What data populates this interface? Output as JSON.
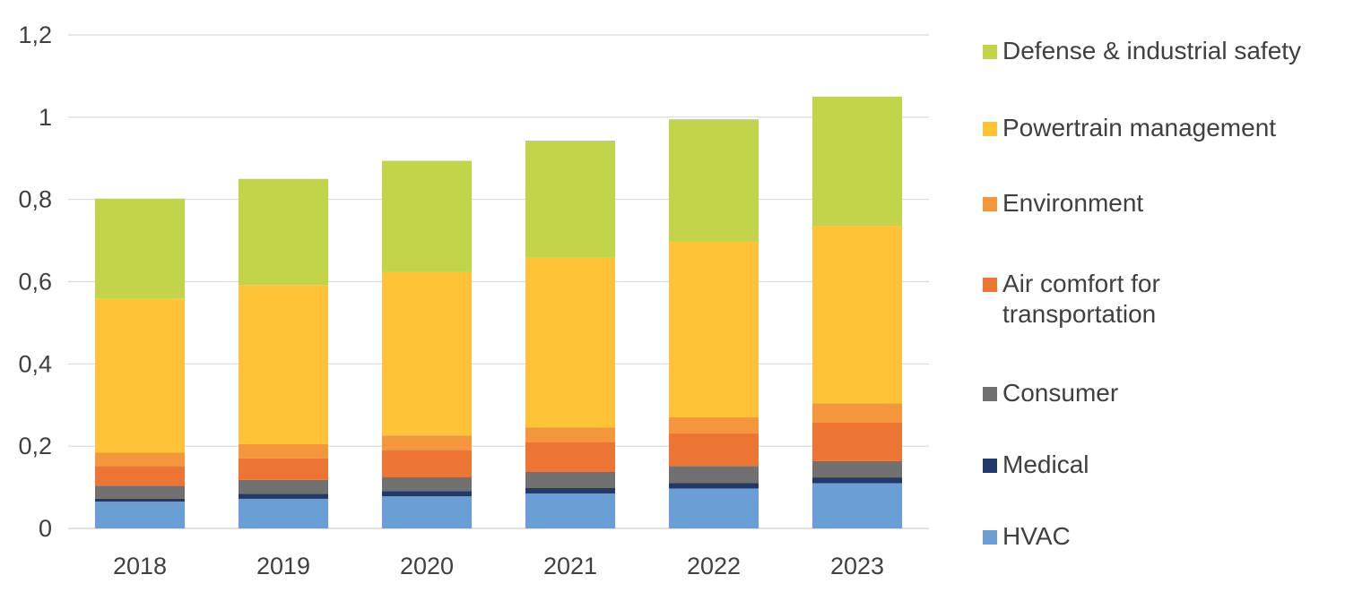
{
  "chart_data": {
    "type": "bar",
    "stacked": true,
    "categories": [
      "2018",
      "2019",
      "2020",
      "2021",
      "2022",
      "2023"
    ],
    "ylim": [
      0,
      1.2
    ],
    "yticks": [
      "0",
      "0,2",
      "0,4",
      "0,6",
      "0,8",
      "1",
      "1,2"
    ],
    "grid": true,
    "legend_position": "right",
    "series": [
      {
        "name": "HVAC",
        "color": "#6A9FD6",
        "values": [
          0.065,
          0.072,
          0.078,
          0.085,
          0.097,
          0.11
        ]
      },
      {
        "name": "Medical",
        "color": "#1F3A6B",
        "values": [
          0.007,
          0.012,
          0.013,
          0.013,
          0.013,
          0.014
        ]
      },
      {
        "name": "Consumer",
        "color": "#707070",
        "values": [
          0.032,
          0.034,
          0.034,
          0.04,
          0.042,
          0.04
        ]
      },
      {
        "name": "Air comfort for transportation",
        "color": "#ED7533",
        "values": [
          0.048,
          0.052,
          0.066,
          0.072,
          0.079,
          0.093
        ]
      },
      {
        "name": "Environment",
        "color": "#F4963B",
        "values": [
          0.032,
          0.035,
          0.035,
          0.035,
          0.039,
          0.047
        ]
      },
      {
        "name": "Powertrain management",
        "color": "#FEC337",
        "values": [
          0.375,
          0.387,
          0.398,
          0.413,
          0.428,
          0.432
        ]
      },
      {
        "name": "Defense & industrial safety",
        "color": "#C2D54A",
        "values": [
          0.243,
          0.258,
          0.27,
          0.285,
          0.297,
          0.314
        ]
      }
    ],
    "legend": [
      {
        "lines": [
          "Defense & industrial safety"
        ],
        "color": "#C2D54A"
      },
      {
        "lines": [
          "Powertrain management"
        ],
        "color": "#FEC337"
      },
      {
        "lines": [
          "Environment"
        ],
        "color": "#F4963B"
      },
      {
        "lines": [
          "Air comfort for",
          "transportation"
        ],
        "color": "#ED7533"
      },
      {
        "lines": [
          "Consumer"
        ],
        "color": "#707070"
      },
      {
        "lines": [
          "Medical"
        ],
        "color": "#1F3A6B"
      },
      {
        "lines": [
          "HVAC"
        ],
        "color": "#6A9FD6"
      }
    ]
  }
}
